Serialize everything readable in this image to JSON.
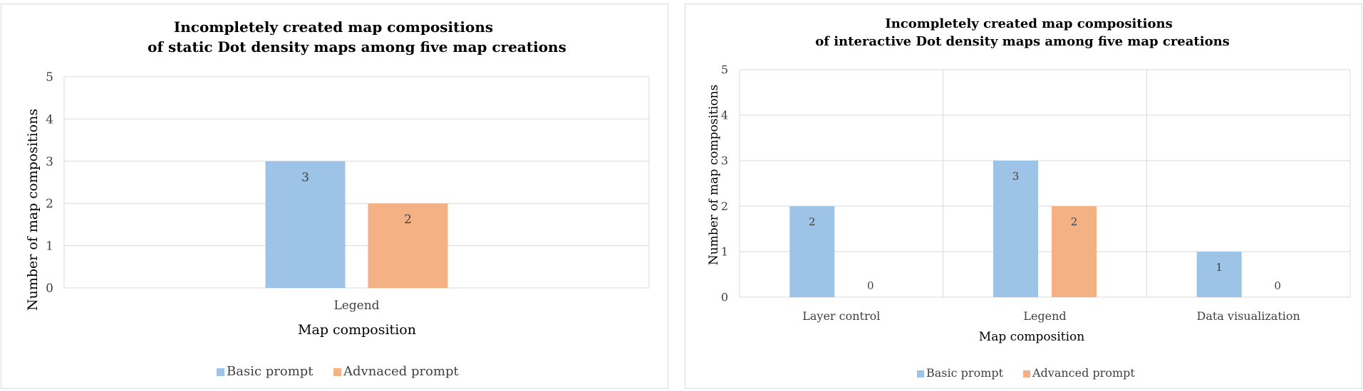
{
  "colors": {
    "basic": "#9dc3e6",
    "advanced": "#f4b183",
    "grid": "#d9d9d9",
    "text": "#404040"
  },
  "chart_data": [
    {
      "type": "bar",
      "title": "Incompletely created map compositions",
      "subtitle": "of static Dot density maps among five map creations",
      "xlabel": "Map composition",
      "ylabel": "Number of map compositions",
      "ylim": [
        0,
        5
      ],
      "yticks": [
        "0",
        "1",
        "2",
        "3",
        "4",
        "5"
      ],
      "categories": [
        "Legend"
      ],
      "series": [
        {
          "name": "Basic prompt",
          "values": [
            3
          ]
        },
        {
          "name": "Advnaced prompt",
          "values": [
            2
          ]
        }
      ],
      "legend_position": "bottom",
      "grid": "horizontal"
    },
    {
      "type": "bar",
      "title": "Incompletely created map compositions",
      "subtitle": "of interactive Dot density maps among five map creations",
      "xlabel": "Map composition",
      "ylabel": "Number of map compositions",
      "ylim": [
        0,
        5
      ],
      "yticks": [
        "0",
        "1",
        "2",
        "3",
        "4",
        "5"
      ],
      "categories": [
        "Layer control",
        "Legend",
        "Data visualization"
      ],
      "series": [
        {
          "name": "Basic prompt",
          "values": [
            2,
            3,
            1
          ]
        },
        {
          "name": "Advanced prompt",
          "values": [
            0,
            2,
            0
          ]
        }
      ],
      "legend_position": "bottom",
      "grid": "both"
    }
  ]
}
